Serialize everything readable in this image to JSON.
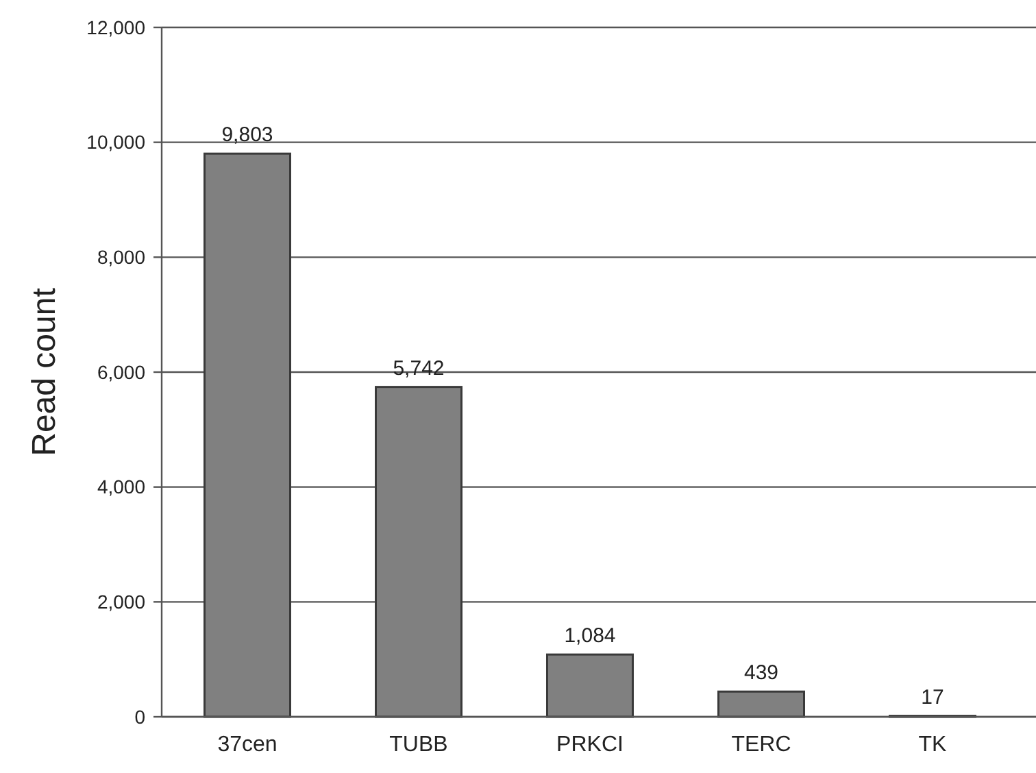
{
  "chart_data": {
    "type": "bar",
    "ylabel": "Read count",
    "categories": [
      "37cen",
      "TUBB",
      "PRKCI",
      "TERC",
      "TK"
    ],
    "values": [
      9803,
      5742,
      1084,
      439,
      17
    ],
    "color": "#808080",
    "ylim": [
      0,
      12000
    ],
    "yticks": [
      {
        "value": 0,
        "label": "0"
      },
      {
        "value": 2000,
        "label": "2,000"
      },
      {
        "value": 4000,
        "label": "4,000"
      },
      {
        "value": 6000,
        "label": "6,000"
      },
      {
        "value": 8000,
        "label": "8,000"
      },
      {
        "value": 10000,
        "label": "10,000"
      },
      {
        "value": 12000,
        "label": "12,000"
      }
    ],
    "grid": "y",
    "data_labels": true,
    "value_labels": [
      "9,803",
      "5,742",
      "1,084",
      "439",
      "17"
    ]
  }
}
